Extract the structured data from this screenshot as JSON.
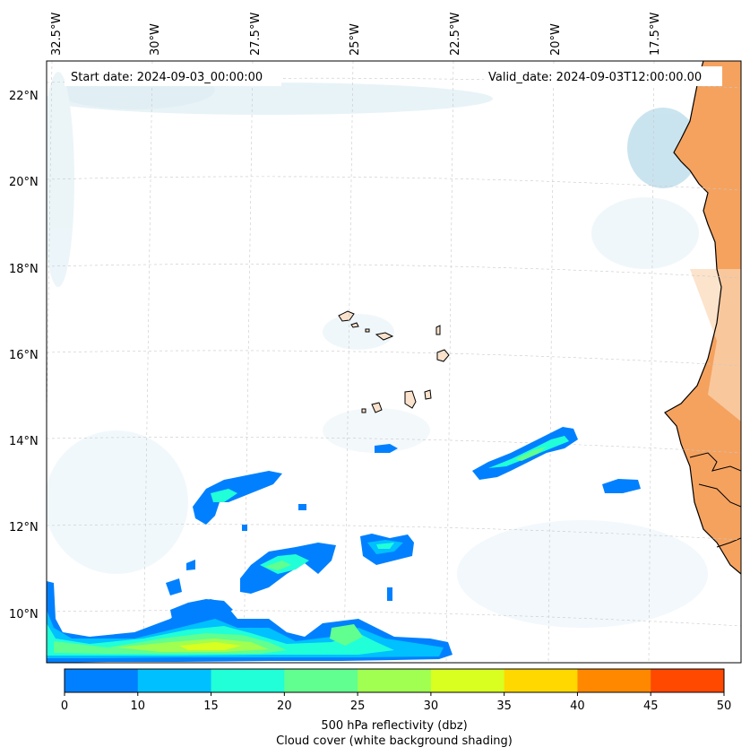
{
  "header": {
    "start_date": "Start date: 2024-09-03_00:00:00",
    "valid_date": "Valid_date: 2024-09-03T12:00:00.00"
  },
  "map": {
    "lon_labels": [
      "32.5°W",
      "30°W",
      "27.5°W",
      "25°W",
      "22.5°W",
      "20°W",
      "17.5°W"
    ],
    "lat_labels": [
      "22°N",
      "20°N",
      "18°N",
      "16°N",
      "14°N",
      "12°N",
      "10°N"
    ],
    "land_color": "#f5a25f",
    "coast_color": "#000000"
  },
  "colorbar": {
    "ticks": [
      "0",
      "10",
      "15",
      "20",
      "25",
      "30",
      "35",
      "40",
      "45",
      "50"
    ],
    "colors": [
      "#0080ff",
      "#00c0ff",
      "#20ffd8",
      "#60ff90",
      "#a0ff50",
      "#d8ff20",
      "#ffd800",
      "#ff8800",
      "#ff4800"
    ],
    "label_line1": "500 hPa reflectivity (dbz)",
    "label_line2": "Cloud cover (white background shading)"
  }
}
